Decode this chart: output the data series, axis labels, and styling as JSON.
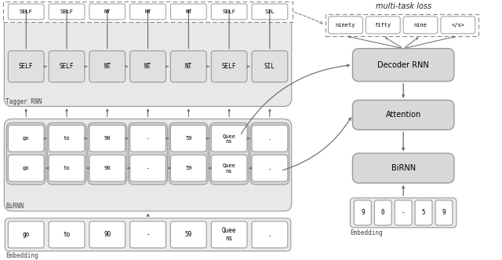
{
  "fig_width": 6.4,
  "fig_height": 3.31,
  "bg_color": "#ffffff",
  "tagger_labels": [
    "SELF",
    "SELF",
    "NT",
    "NT",
    "NT",
    "SELF",
    "SIL"
  ],
  "birnn_labels": [
    "go",
    "to",
    "90",
    "-",
    "59",
    "Quee\nns",
    "."
  ],
  "embedding_left_labels": [
    "go",
    "to",
    "90",
    "-",
    "59",
    "Quee\nns",
    "."
  ],
  "decoder_output_labels": [
    "ninety",
    "fifty",
    "nine",
    "</s>"
  ],
  "embedding_right_labels": [
    "9",
    "0",
    "-",
    "5",
    "9"
  ],
  "right_block_labels": [
    "Decoder RNN",
    "Attention",
    "BiRNN"
  ],
  "label_tagger": "Tagger RNN",
  "label_birnn": "BiRNN",
  "label_embed_left": "Embedding",
  "label_embed_right": "Embedding",
  "label_multitask": "multi-task loss"
}
